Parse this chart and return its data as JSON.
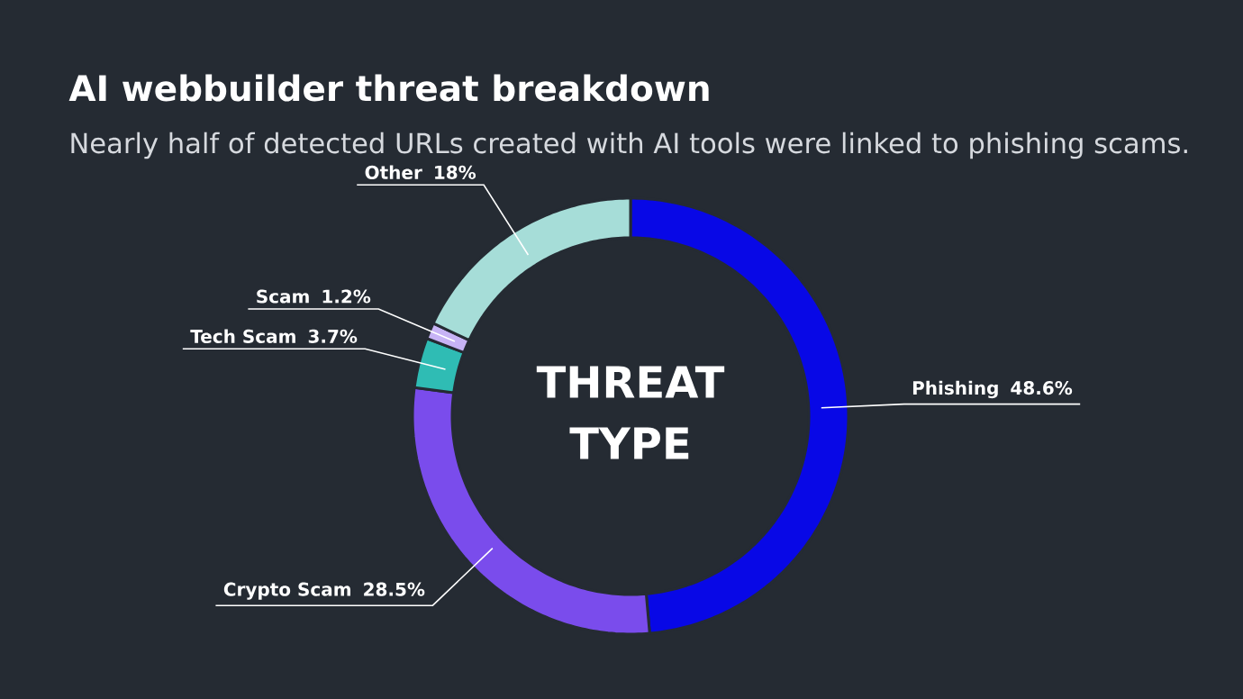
{
  "chart_data": {
    "type": "donut",
    "title": "AI webbuilder threat breakdown",
    "subtitle": "Nearly half of detected URLs created with AI tools were linked to phishing scams.",
    "categories": [
      "Phishing",
      "Crypto Scam",
      "Tech Scam",
      "Scam",
      "Other"
    ],
    "values": [
      48.6,
      28.5,
      3.7,
      1.2,
      18
    ],
    "value_labels": [
      "48.6%",
      "28.5%",
      "3.7%",
      "1.2%",
      "18%"
    ],
    "colors": [
      "#0808e6",
      "#7a4cec",
      "#2fbcb4",
      "#c7b3f5",
      "#a6ddd8"
    ],
    "data_labels": true,
    "annotations": [
      "THREAT TYPE"
    ]
  }
}
